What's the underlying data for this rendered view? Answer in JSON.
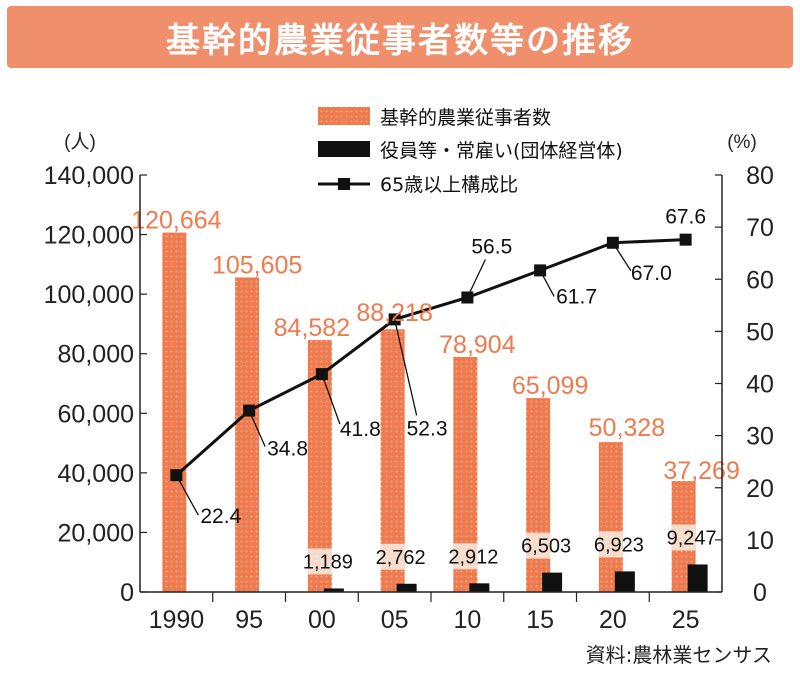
{
  "title": "基幹的農業従事者数等の推移",
  "source": "資料:農林業センサス",
  "colors": {
    "farmer_bar": "#ef7a4e",
    "exec_bar": "#111111",
    "ratio_line": "#111111",
    "title_bg": "#ef8f6c"
  },
  "chart_data": {
    "type": "bar",
    "title": "基幹的農業従事者数等の推移",
    "categories": [
      "1990",
      "95",
      "00",
      "05",
      "10",
      "15",
      "20",
      "25"
    ],
    "y_left": {
      "unit": "(人)",
      "ylim": [
        0,
        140000
      ],
      "ticks": [
        "0",
        "20,000",
        "40,000",
        "60,000",
        "80,000",
        "100,000",
        "120,000",
        "140,000"
      ]
    },
    "y_right": {
      "unit": "(%)",
      "ylim": [
        0,
        80
      ],
      "ticks": [
        "0",
        "10",
        "20",
        "30",
        "40",
        "50",
        "60",
        "70",
        "80"
      ]
    },
    "legend": [
      "基幹的農業従事者数",
      "役員等・常雇い(団体経営体)",
      "65歳以上構成比"
    ],
    "series": [
      {
        "name": "基幹的農業従事者数",
        "type": "bar",
        "axis": "left",
        "values": [
          120664,
          105605,
          84582,
          88218,
          78904,
          65099,
          50328,
          37269
        ],
        "labels": [
          "120,664",
          "105,605",
          "84,582",
          "88,218",
          "78,904",
          "65,099",
          "50,328",
          "37,269"
        ]
      },
      {
        "name": "役員等・常雇い(団体経営体)",
        "type": "bar",
        "axis": "left",
        "values": [
          null,
          null,
          1189,
          2762,
          2912,
          6503,
          6923,
          9247
        ],
        "labels": [
          "",
          "",
          "1,189",
          "2,762",
          "2,912",
          "6,503",
          "6,923",
          "9,247"
        ]
      },
      {
        "name": "65歳以上構成比",
        "type": "line",
        "axis": "right",
        "values": [
          22.4,
          34.8,
          41.8,
          52.3,
          56.5,
          61.7,
          67.0,
          67.6
        ],
        "labels": [
          "22.4",
          "34.8",
          "41.8",
          "52.3",
          "56.5",
          "61.7",
          "67.0",
          "67.6"
        ]
      }
    ]
  }
}
